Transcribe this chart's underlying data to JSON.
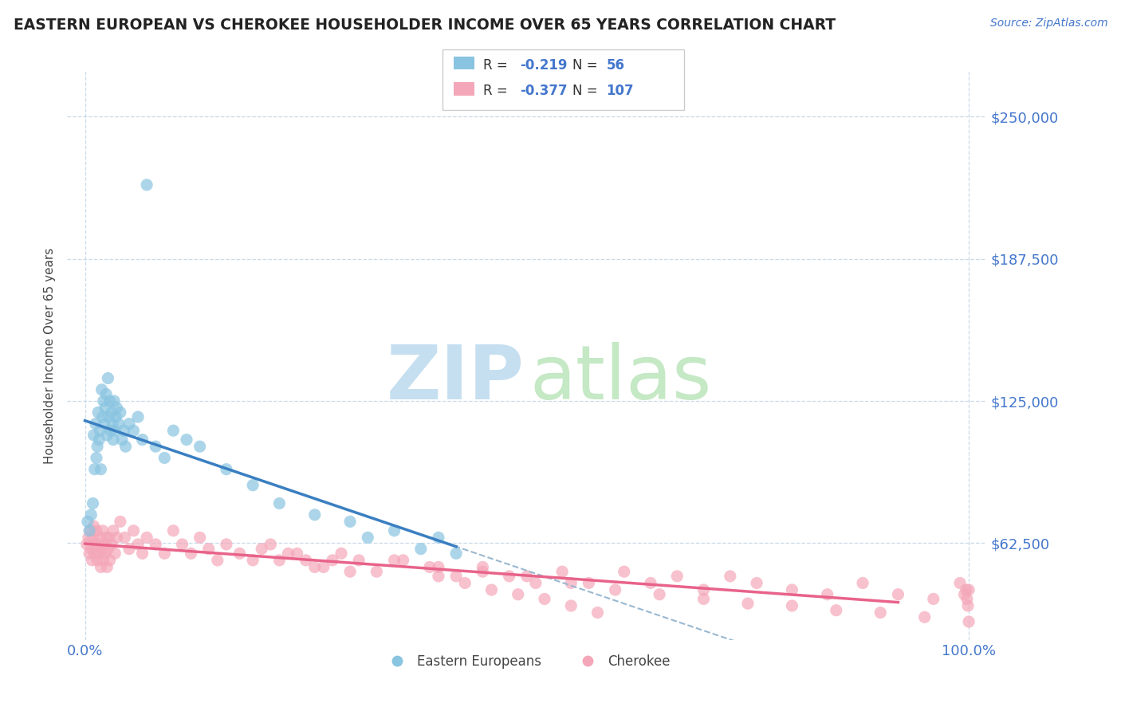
{
  "title": "EASTERN EUROPEAN VS CHEROKEE HOUSEHOLDER INCOME OVER 65 YEARS CORRELATION CHART",
  "source": "Source: ZipAtlas.com",
  "ylabel": "Householder Income Over 65 years",
  "xlim": [
    -0.02,
    1.02
  ],
  "ylim": [
    20000,
    270000
  ],
  "yticks": [
    62500,
    125000,
    187500,
    250000
  ],
  "ytick_labels": [
    "$62,500",
    "$125,000",
    "$187,500",
    "$250,000"
  ],
  "xtick_positions": [
    0.0,
    1.0
  ],
  "xtick_labels": [
    "0.0%",
    "100.0%"
  ],
  "legend1_r": "-0.219",
  "legend1_n": "56",
  "legend2_r": "-0.377",
  "legend2_n": "107",
  "blue_color": "#89c4e1",
  "pink_color": "#f4a7b9",
  "blue_line_color": "#3a7fc1",
  "pink_line_color": "#e8638a",
  "gray_dash_color": "#9ab8d0",
  "title_color": "#222222",
  "axis_label_color": "#444444",
  "tick_color": "#4477cc",
  "grid_color": "#c8daea",
  "blue_scatter_x": [
    0.003,
    0.005,
    0.007,
    0.009,
    0.01,
    0.011,
    0.012,
    0.013,
    0.014,
    0.015,
    0.016,
    0.017,
    0.018,
    0.019,
    0.02,
    0.021,
    0.022,
    0.023,
    0.024,
    0.025,
    0.026,
    0.027,
    0.028,
    0.029,
    0.03,
    0.031,
    0.032,
    0.033,
    0.034,
    0.035,
    0.036,
    0.038,
    0.04,
    0.042,
    0.044,
    0.046,
    0.05,
    0.055,
    0.06,
    0.065,
    0.07,
    0.08,
    0.09,
    0.1,
    0.115,
    0.13,
    0.16,
    0.19,
    0.22,
    0.26,
    0.3,
    0.32,
    0.35,
    0.38,
    0.4,
    0.42
  ],
  "blue_scatter_y": [
    72000,
    68000,
    75000,
    80000,
    110000,
    95000,
    115000,
    100000,
    105000,
    120000,
    108000,
    112000,
    95000,
    130000,
    118000,
    125000,
    115000,
    122000,
    128000,
    110000,
    135000,
    118000,
    125000,
    112000,
    120000,
    115000,
    108000,
    125000,
    112000,
    118000,
    122000,
    115000,
    120000,
    108000,
    112000,
    105000,
    115000,
    112000,
    118000,
    108000,
    220000,
    105000,
    100000,
    112000,
    108000,
    105000,
    95000,
    88000,
    80000,
    75000,
    72000,
    65000,
    68000,
    60000,
    65000,
    58000
  ],
  "pink_scatter_x": [
    0.002,
    0.004,
    0.005,
    0.006,
    0.007,
    0.008,
    0.009,
    0.01,
    0.011,
    0.012,
    0.013,
    0.014,
    0.015,
    0.016,
    0.017,
    0.018,
    0.019,
    0.02,
    0.021,
    0.022,
    0.023,
    0.024,
    0.025,
    0.026,
    0.027,
    0.028,
    0.03,
    0.032,
    0.034,
    0.036,
    0.04,
    0.045,
    0.05,
    0.055,
    0.06,
    0.065,
    0.07,
    0.08,
    0.09,
    0.1,
    0.11,
    0.12,
    0.13,
    0.14,
    0.15,
    0.16,
    0.175,
    0.19,
    0.21,
    0.23,
    0.25,
    0.27,
    0.29,
    0.31,
    0.33,
    0.36,
    0.39,
    0.42,
    0.45,
    0.48,
    0.51,
    0.54,
    0.57,
    0.61,
    0.64,
    0.67,
    0.7,
    0.73,
    0.76,
    0.8,
    0.84,
    0.88,
    0.92,
    0.96,
    0.99,
    0.995,
    0.997,
    0.998,
    0.999,
    1.0,
    0.2,
    0.22,
    0.24,
    0.26,
    0.28,
    0.3,
    0.35,
    0.4,
    0.45,
    0.5,
    0.55,
    0.6,
    0.65,
    0.7,
    0.75,
    0.8,
    0.85,
    0.9,
    0.95,
    1.0,
    0.4,
    0.43,
    0.46,
    0.49,
    0.52,
    0.55,
    0.58
  ],
  "pink_scatter_y": [
    62000,
    65000,
    58000,
    68000,
    60000,
    55000,
    65000,
    70000,
    58000,
    62000,
    68000,
    55000,
    62000,
    58000,
    65000,
    52000,
    60000,
    68000,
    55000,
    62000,
    58000,
    65000,
    52000,
    60000,
    65000,
    55000,
    62000,
    68000,
    58000,
    65000,
    72000,
    65000,
    60000,
    68000,
    62000,
    58000,
    65000,
    62000,
    58000,
    68000,
    62000,
    58000,
    65000,
    60000,
    55000,
    62000,
    58000,
    55000,
    62000,
    58000,
    55000,
    52000,
    58000,
    55000,
    50000,
    55000,
    52000,
    48000,
    52000,
    48000,
    45000,
    50000,
    45000,
    50000,
    45000,
    48000,
    42000,
    48000,
    45000,
    42000,
    40000,
    45000,
    40000,
    38000,
    45000,
    40000,
    42000,
    38000,
    35000,
    42000,
    60000,
    55000,
    58000,
    52000,
    55000,
    50000,
    55000,
    52000,
    50000,
    48000,
    45000,
    42000,
    40000,
    38000,
    36000,
    35000,
    33000,
    32000,
    30000,
    28000,
    48000,
    45000,
    42000,
    40000,
    38000,
    35000,
    32000
  ],
  "watermark_zip_color": "#c8dcf0",
  "watermark_atlas_color": "#c8e8c8"
}
